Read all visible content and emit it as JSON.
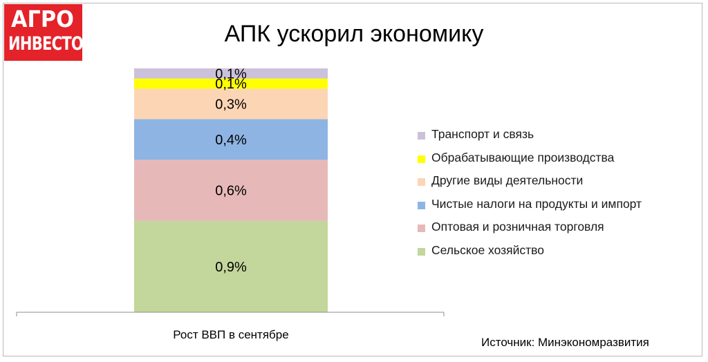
{
  "logo": {
    "line1": "АГРО",
    "line2": "ИНВЕСТОР"
  },
  "source": "Источник: Минэкономразвития",
  "chart_data": {
    "type": "bar",
    "stacked": true,
    "title": "АПК ускорил экономику",
    "categories": [
      "Рост ВВП в сентябре"
    ],
    "series": [
      {
        "name": "Сельское хозяйство",
        "values": [
          0.9
        ],
        "label": "0,9%",
        "color": "#c3d69b"
      },
      {
        "name": "Оптовая и розничная торговля",
        "values": [
          0.6
        ],
        "label": "0,6%",
        "color": "#e6b9b8"
      },
      {
        "name": "Чистые налоги на продукты и импорт",
        "values": [
          0.4
        ],
        "label": "0,4%",
        "color": "#8eb4e3"
      },
      {
        "name": "Другие виды деятельности",
        "values": [
          0.3
        ],
        "label": "0,3%",
        "color": "#fcd5b5"
      },
      {
        "name": "Обрабатывающие производства",
        "values": [
          0.1
        ],
        "label": "0,1%",
        "color": "#ffff00"
      },
      {
        "name": "Транспорт и связь",
        "values": [
          0.1
        ],
        "label": "0,1%",
        "color": "#ccc1da"
      }
    ],
    "ylim": [
      0,
      2.4
    ],
    "grid": false,
    "legend_position": "right"
  }
}
